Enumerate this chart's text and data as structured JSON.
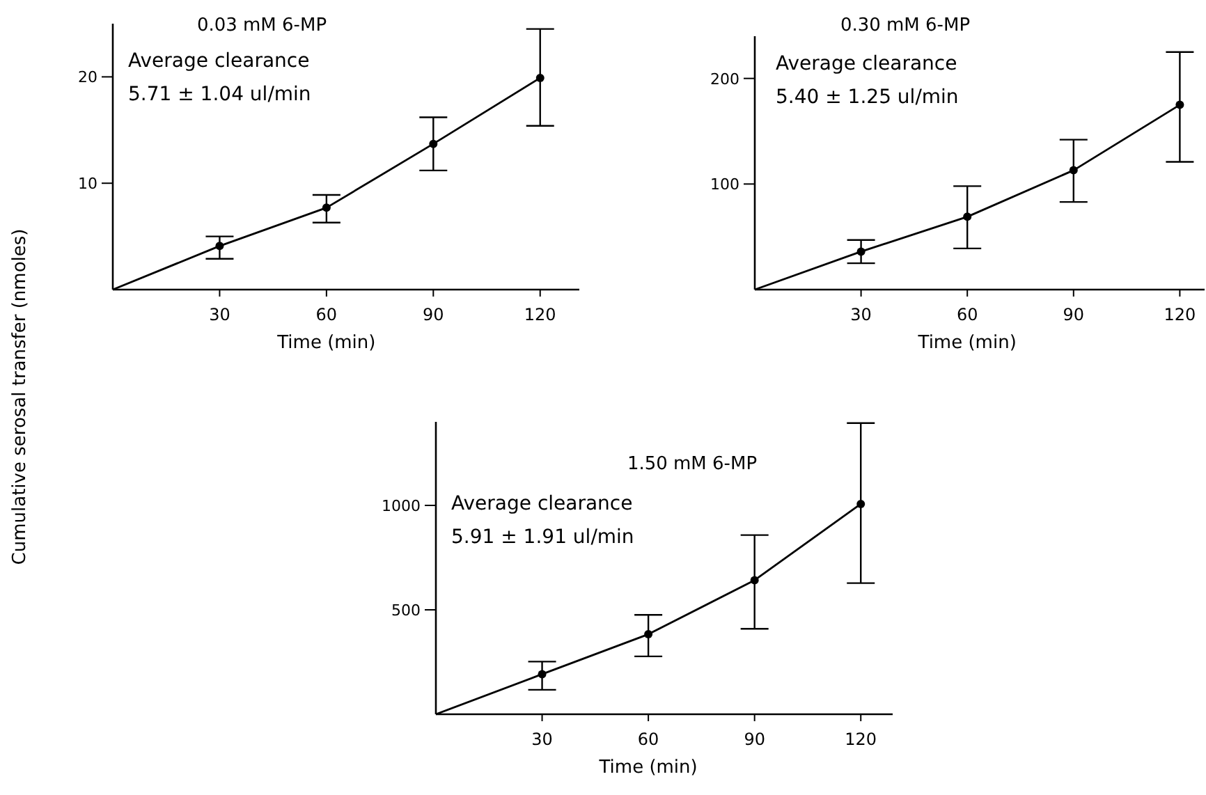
{
  "chart_data": [
    {
      "type": "line",
      "title": "0.03 mM 6-MP",
      "ylabel": "Cumulative serosal transfer (nmoles)",
      "xlabel": "Time (min)",
      "annotations": [
        "Average clearance",
        "5.71 ± 1.04 ul/min"
      ],
      "x": [
        0,
        30,
        60,
        90,
        120
      ],
      "xlim": [
        0,
        131
      ],
      "xticks": [
        30,
        60,
        90,
        120
      ],
      "ylim": [
        0,
        25
      ],
      "yticks": [
        10,
        20
      ],
      "marker": "circle",
      "line_style": "solid",
      "grid": false,
      "series": [
        {
          "color": "#000000",
          "values": [
            0,
            4.1,
            7.7,
            13.7,
            19.9
          ],
          "errors": [
            null,
            [
              2.9,
              5.0
            ],
            [
              6.3,
              8.9
            ],
            [
              11.2,
              16.2
            ],
            [
              15.4,
              24.5
            ]
          ]
        }
      ]
    },
    {
      "type": "line",
      "title": "0.30 mM 6-MP",
      "xlabel": "Time (min)",
      "annotations": [
        "Average clearance",
        "5.40 ± 1.25 ul/min"
      ],
      "x": [
        0,
        30,
        60,
        90,
        120
      ],
      "xlim": [
        0,
        127
      ],
      "xticks": [
        30,
        60,
        90,
        120
      ],
      "ylim": [
        0,
        240
      ],
      "yticks": [
        100,
        200
      ],
      "marker": "circle",
      "line_style": "solid",
      "grid": false,
      "series": [
        {
          "color": "#000000",
          "values": [
            0,
            36,
            69,
            113,
            175
          ],
          "errors": [
            null,
            [
              25,
              47
            ],
            [
              39,
              98
            ],
            [
              83,
              142
            ],
            [
              121,
              225
            ]
          ]
        }
      ]
    },
    {
      "type": "line",
      "title": "1.50 mM 6-MP",
      "xlabel": "Time (min)",
      "annotations": [
        "Average clearance",
        "5.91 ± 1.91 ul/min"
      ],
      "x": [
        0,
        30,
        60,
        90,
        120
      ],
      "xlim": [
        0,
        129
      ],
      "xticks": [
        30,
        60,
        90,
        120
      ],
      "ylim": [
        0,
        1400
      ],
      "yticks": [
        500,
        1000
      ],
      "marker": "circle",
      "line_style": "solid",
      "grid": false,
      "series": [
        {
          "color": "#000000",
          "values": [
            0,
            192,
            383,
            642,
            1007
          ],
          "errors": [
            null,
            [
              117,
              252
            ],
            [
              277,
              476
            ],
            [
              409,
              858
            ],
            [
              628,
              1394
            ]
          ]
        }
      ]
    }
  ]
}
